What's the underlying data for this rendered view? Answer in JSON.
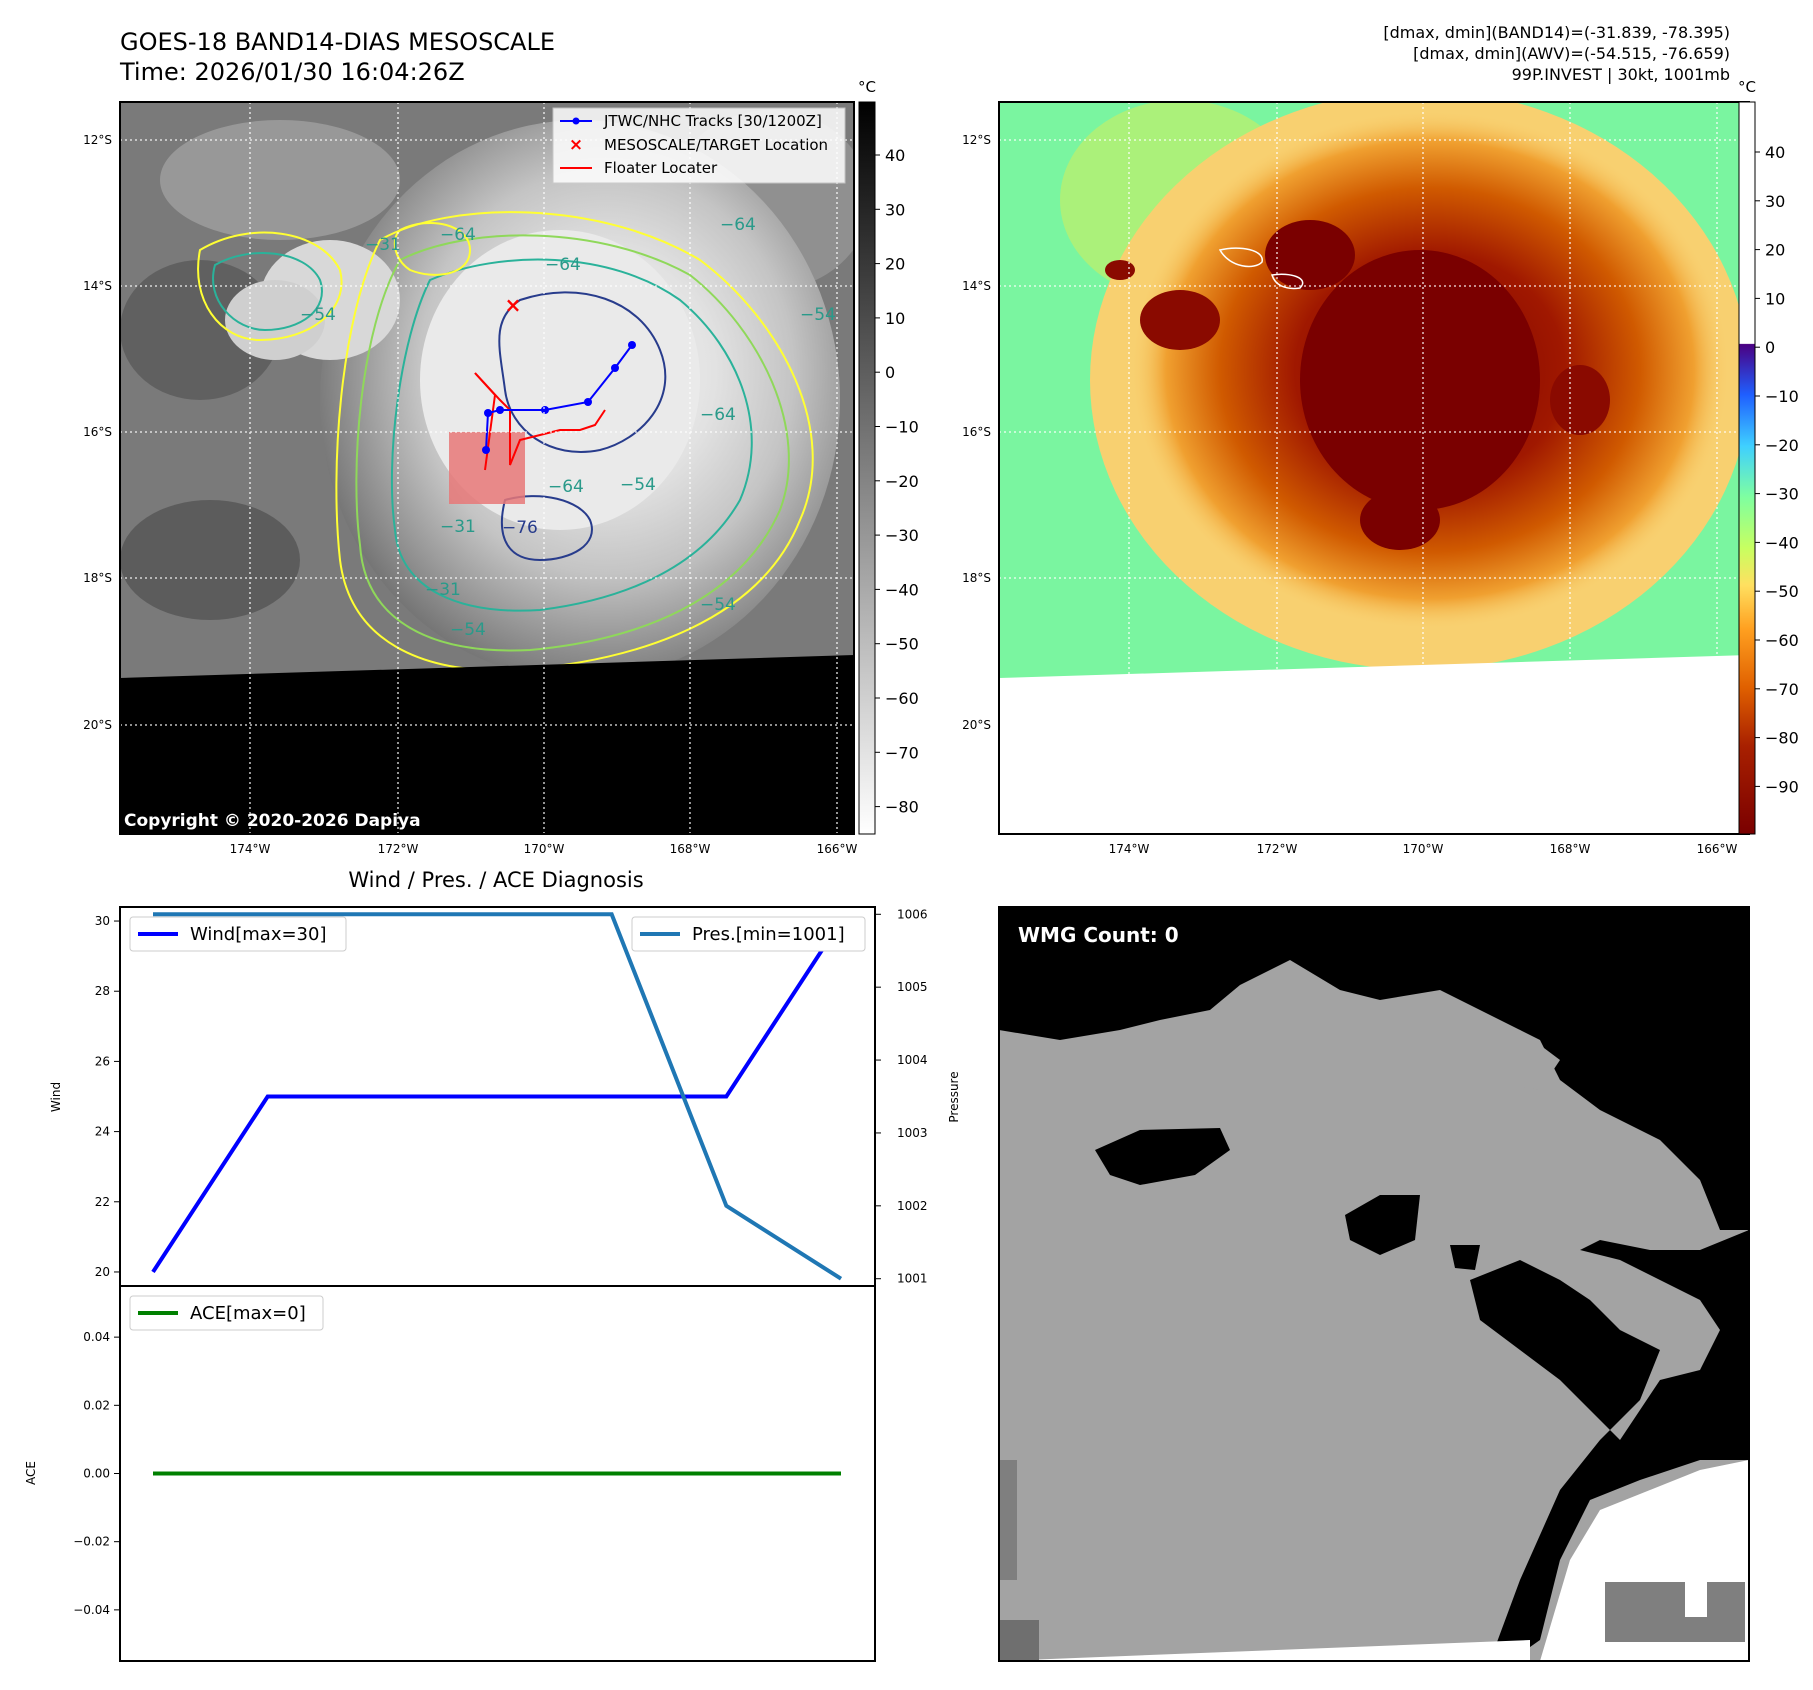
{
  "header": {
    "title": "GOES-18 BAND14-DIAS MESOSCALE",
    "time": "Time: 2026/01/30 16:04:26Z",
    "info_band14": "[dmax, dmin](BAND14)=(-31.839, -78.395)",
    "info_awv": "[dmax, dmin](AWV)=(-54.515, -76.659)",
    "info_storm": "99P.INVEST | 30kt, 1001mb"
  },
  "map_ir": {
    "colorbar_unit": "°C",
    "colorbar_ticks": [
      "40",
      "30",
      "20",
      "10",
      "0",
      "−10",
      "−20",
      "−30",
      "−40",
      "−50",
      "−60",
      "−70",
      "−80"
    ],
    "lat_labels": [
      "12°S",
      "14°S",
      "16°S",
      "18°S",
      "20°S"
    ],
    "lon_labels": [
      "174°W",
      "172°W",
      "170°W",
      "168°W",
      "166°W"
    ],
    "legend": {
      "tracks": "JTWC/NHC Tracks [30/1200Z]",
      "target": "MESOSCALE/TARGET Location",
      "floater": "Floater Locater"
    },
    "contour_labels": [
      "−64",
      "−54",
      "−64",
      "−31",
      "−54",
      "−64",
      "−54",
      "−76",
      "−64",
      "−54",
      "−31",
      "−31",
      "−54",
      "−64"
    ],
    "copyright": "Copyright © 2020-2026 Dapiya",
    "colors": {
      "track": "#0000ff",
      "target": "#ff0000",
      "floater": "#ff0000"
    }
  },
  "map_awv": {
    "colorbar_unit": "°C",
    "colorbar_ticks": [
      "40",
      "30",
      "20",
      "10",
      "0",
      "−10",
      "−20",
      "−30",
      "−40",
      "−50",
      "−60",
      "−70",
      "−80",
      "−90"
    ],
    "lat_labels": [
      "12°S",
      "14°S",
      "16°S",
      "18°S",
      "20°S"
    ],
    "lon_labels": [
      "174°W",
      "172°W",
      "170°W",
      "168°W",
      "166°W"
    ]
  },
  "diagnosis": {
    "title": "Wind / Pres. / ACE Diagnosis",
    "wind_ylabel": "Wind",
    "pres_ylabel": "Pressure",
    "ace_ylabel": "ACE",
    "wind_legend": "Wind[max=30]",
    "pres_legend": "Pres.[min=1001]",
    "ace_legend": "ACE[max=0]",
    "wind_ticks": [
      "30",
      "28",
      "26",
      "24",
      "22",
      "20"
    ],
    "pres_ticks": [
      "1006",
      "1005",
      "1004",
      "1003",
      "1002",
      "1001"
    ],
    "ace_ticks": [
      "0.04",
      "0.02",
      "0.00",
      "−0.02",
      "−0.04"
    ]
  },
  "wmg": {
    "label": "WMG Count: 0"
  },
  "chart_data": [
    {
      "type": "line",
      "x": [
        0,
        1,
        2,
        3,
        4,
        5,
        6
      ],
      "series": [
        {
          "name": "Wind[max=30]",
          "axis": "left",
          "values": [
            20,
            25,
            25,
            25,
            25,
            25,
            30
          ],
          "color": "#0000ff"
        },
        {
          "name": "Pres.[min=1001]",
          "axis": "right",
          "values": [
            1006,
            1006,
            1006,
            1006,
            1006,
            1002,
            1001
          ],
          "color": "#1f77b4"
        }
      ],
      "ylabel": "Wind",
      "ylabel_right": "Pressure",
      "ylim": [
        19.6,
        30.4
      ],
      "ylim_right": [
        1000.9,
        1006.1
      ],
      "grid": false,
      "legend": "top-left / top-right"
    },
    {
      "type": "line",
      "x": [
        0,
        1,
        2,
        3,
        4,
        5,
        6
      ],
      "series": [
        {
          "name": "ACE[max=0]",
          "values": [
            0,
            0,
            0,
            0,
            0,
            0,
            0
          ],
          "color": "#008000"
        }
      ],
      "ylabel": "ACE",
      "ylim": [
        -0.055,
        0.055
      ],
      "grid": false,
      "legend": "top-left"
    }
  ]
}
